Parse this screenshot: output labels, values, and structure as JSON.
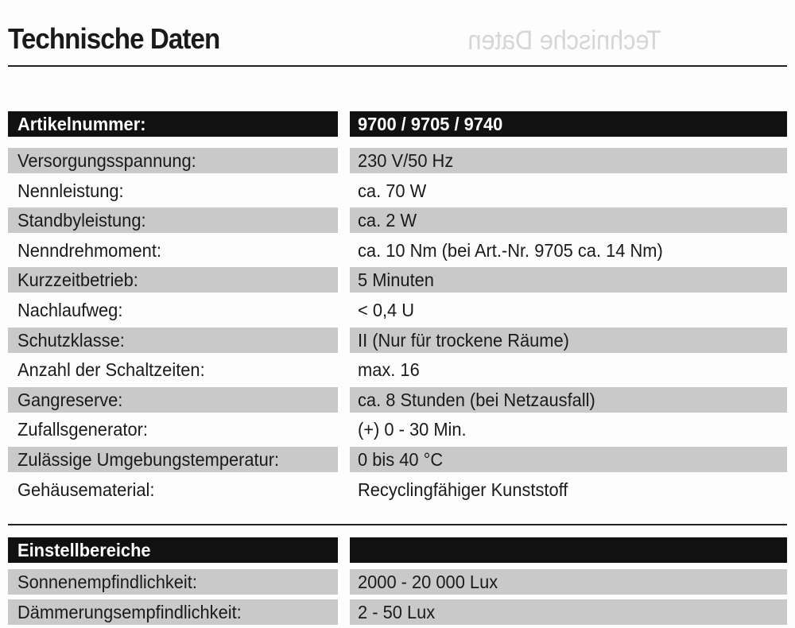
{
  "title": "Technische Daten",
  "section1": {
    "header": {
      "label": "Artikelnummer:",
      "value": "9700 / 9705 / 9740"
    },
    "rows": [
      {
        "label": "Versorgungsspannung:",
        "value": "230 V/50 Hz"
      },
      {
        "label": "Nennleistung:",
        "value": "ca. 70 W"
      },
      {
        "label": "Standbyleistung:",
        "value": "ca. 2 W"
      },
      {
        "label": "Nenndrehmoment:",
        "value": "ca. 10 Nm (bei Art.-Nr. 9705 ca. 14 Nm)"
      },
      {
        "label": "Kurzzeitbetrieb:",
        "value": "5 Minuten"
      },
      {
        "label": "Nachlaufweg:",
        "value": "< 0,4 U"
      },
      {
        "label": "Schutzklasse:",
        "value": "II (Nur für trockene Räume)"
      },
      {
        "label": "Anzahl der Schaltzeiten:",
        "value": "max. 16"
      },
      {
        "label": "Gangreserve:",
        "value": "ca. 8 Stunden (bei Netzausfall)"
      },
      {
        "label": "Zufallsgenerator:",
        "value": "(+) 0 - 30 Min."
      },
      {
        "label": "Zulässige Umgebungstemperatur:",
        "value": "0 bis 40 °C"
      },
      {
        "label": "Gehäusematerial:",
        "value": "Recyclingfähiger Kunststoff"
      }
    ]
  },
  "section2": {
    "header": {
      "label": "Einstellbereiche",
      "value": ""
    },
    "rows": [
      {
        "label": "Sonnenempfindlichkeit:",
        "value": "2000 - 20 000 Lux"
      },
      {
        "label": "Dämmerungsempfindlichkeit:",
        "value": "2 - 50 Lux"
      }
    ]
  }
}
